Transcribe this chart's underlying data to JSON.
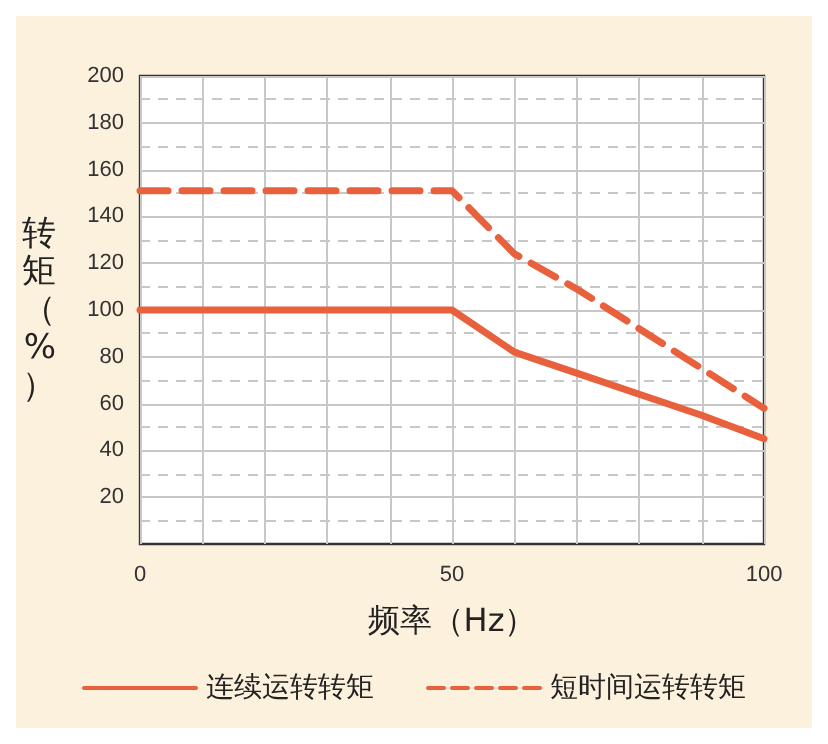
{
  "chart_data": {
    "type": "line",
    "xlabel": "频率（Hz）",
    "ylabel": "转矩（%）",
    "xlim": [
      0,
      100
    ],
    "ylim": [
      0,
      200
    ],
    "xticks": [
      0,
      {
        "value": 10,
        "label": null
      },
      {
        "value": 20,
        "label": null
      },
      {
        "value": 30,
        "label": null
      },
      {
        "value": 40,
        "label": null
      },
      50,
      {
        "value": 60,
        "label": null
      },
      {
        "value": 70,
        "label": null
      },
      {
        "value": 80,
        "label": null
      },
      {
        "value": 90,
        "label": null
      },
      100
    ],
    "yticks": [
      {
        "value": 10,
        "label": null
      },
      20,
      {
        "value": 30,
        "label": null
      },
      40,
      {
        "value": 50,
        "label": null
      },
      60,
      {
        "value": 70,
        "label": null
      },
      80,
      {
        "value": 90,
        "label": null
      },
      100,
      {
        "value": 110,
        "label": null
      },
      120,
      {
        "value": 130,
        "label": null
      },
      140,
      {
        "value": 150,
        "label": null
      },
      160,
      {
        "value": 170,
        "label": null
      },
      180,
      {
        "value": 190,
        "label": null
      },
      200
    ],
    "grid": true,
    "legend": "bottom",
    "marker": "none",
    "series": [
      {
        "name": "连续运转转矩",
        "color": "#e8603c",
        "line_style": "solid",
        "x": [
          0,
          50,
          60,
          70,
          80,
          90,
          100
        ],
        "values": [
          100,
          100,
          82,
          73,
          64,
          55,
          45
        ]
      },
      {
        "name": "短时间运转转矩",
        "color": "#e8603c",
        "line_style": "dashed",
        "x": [
          0,
          50,
          60,
          70,
          80,
          90,
          100
        ],
        "values": [
          151,
          151,
          124,
          109,
          92,
          75,
          58
        ]
      }
    ]
  }
}
